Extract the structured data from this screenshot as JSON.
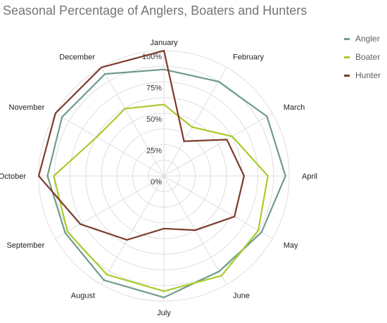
{
  "chart_data": {
    "type": "radar",
    "title": "Seasonal Percentage of Anglers, Boaters and Hunters",
    "categories": [
      "January",
      "February",
      "March",
      "April",
      "May",
      "June",
      "July",
      "August",
      "September",
      "October",
      "November",
      "December"
    ],
    "r_ticks": [
      "0%",
      "25%",
      "50%",
      "75%",
      "100%"
    ],
    "rlim": [
      0,
      100
    ],
    "grid": true,
    "legend_position": "top-right",
    "series": [
      {
        "name": "Angler",
        "color": "#6f9b8a",
        "values": [
          85,
          87,
          95,
          97,
          90,
          88,
          97,
          96,
          91,
          93,
          94,
          94
        ]
      },
      {
        "name": "Boater",
        "color": "#a9cb2a",
        "values": [
          57,
          45,
          63,
          83,
          87,
          92,
          92,
          91,
          89,
          88,
          62,
          62
        ]
      },
      {
        "name": "Hunter",
        "color": "#7c3b2b",
        "values": [
          100,
          32,
          58,
          64,
          65,
          50,
          42,
          59,
          77,
          100,
          100,
          100
        ]
      }
    ]
  }
}
